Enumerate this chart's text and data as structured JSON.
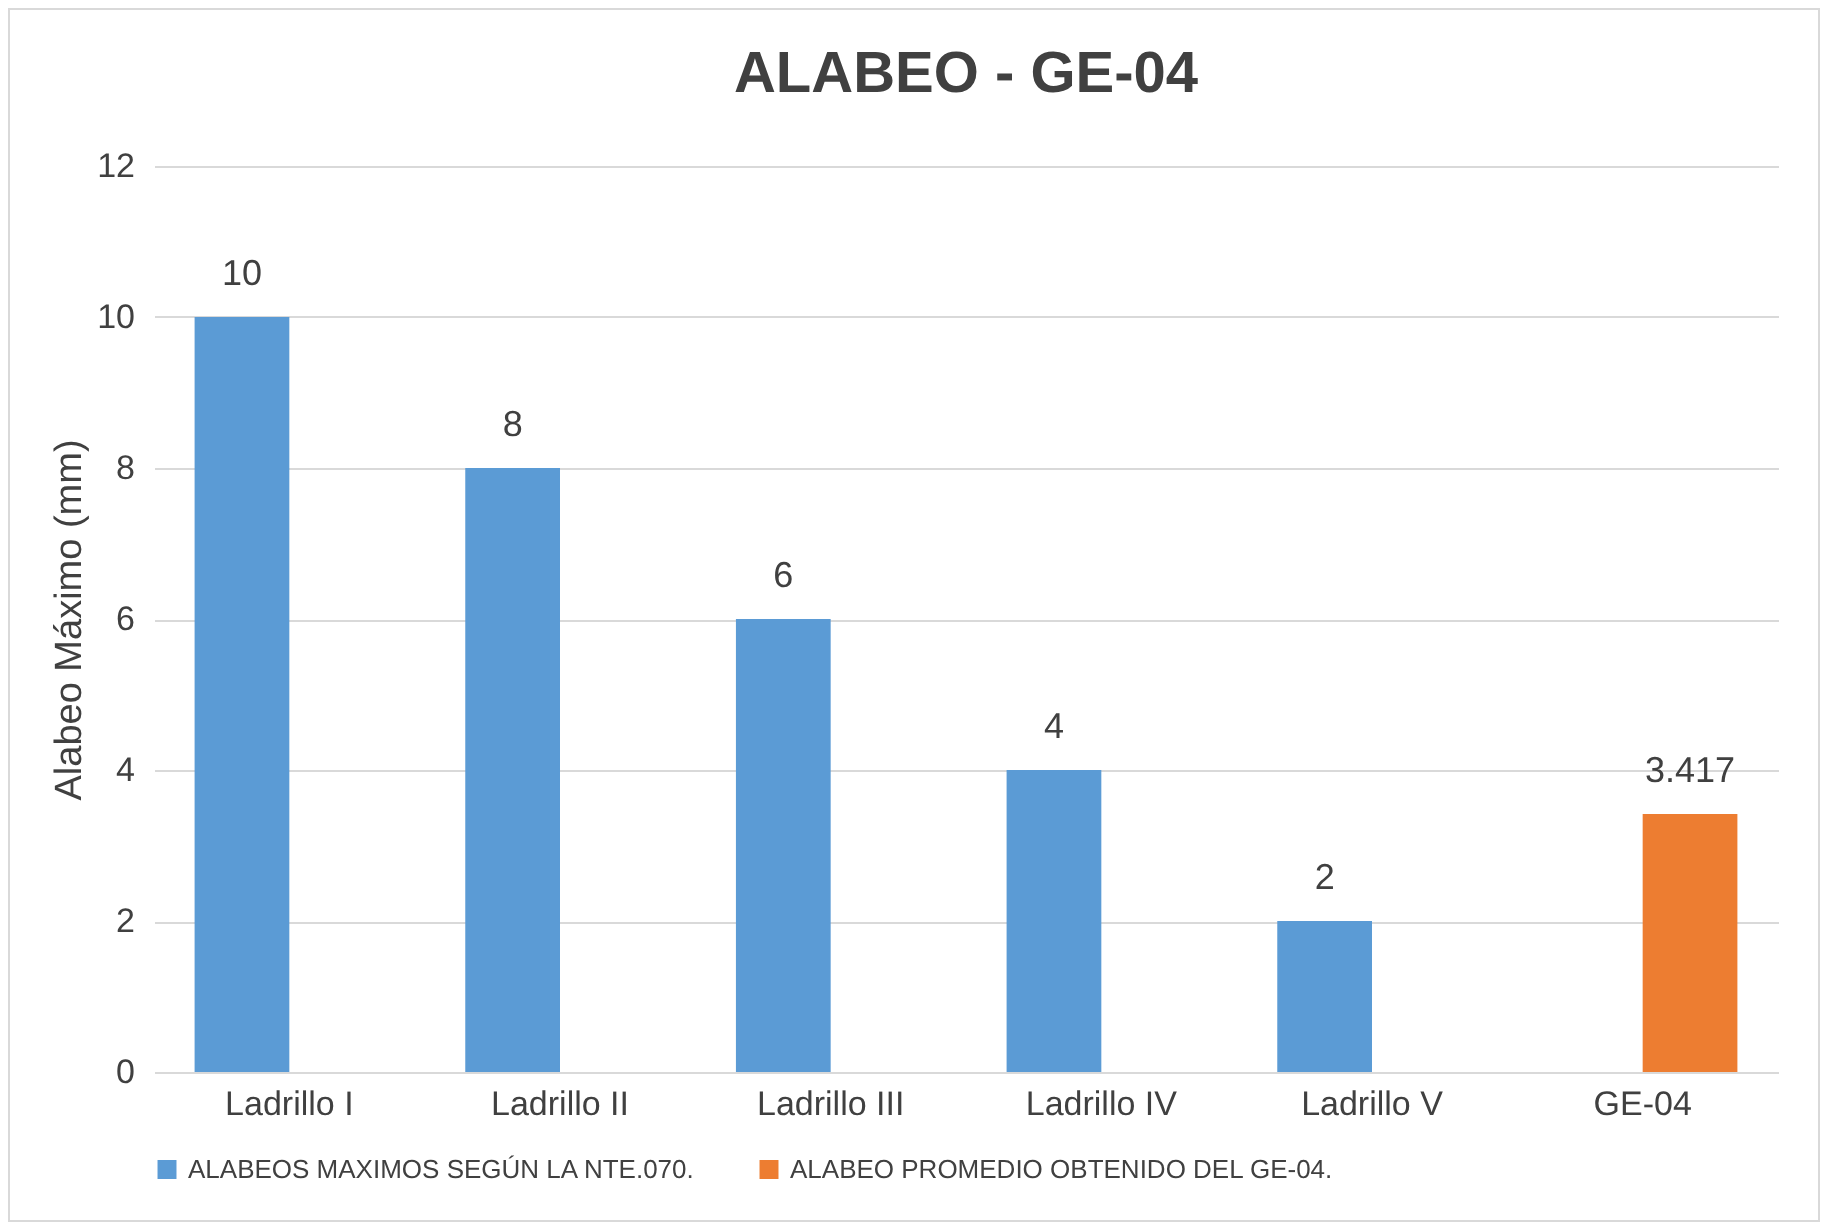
{
  "chart_data": {
    "type": "bar",
    "title": "ALABEO - GE-04",
    "ylabel": "Alabeo Máximo (mm)",
    "categories": [
      "Ladrillo I",
      "Ladrillo II",
      "Ladrillo III",
      "Ladrillo IV",
      "Ladrillo V",
      "GE-04"
    ],
    "series": [
      {
        "name": "ALABEOS MAXIMOS SEGÚN LA NTE.070.",
        "color": "#5b9bd5",
        "values": [
          10,
          8,
          6,
          4,
          2,
          null
        ]
      },
      {
        "name": "ALABEO PROMEDIO OBTENIDO DEL GE-04.",
        "color": "#ed7d31",
        "values": [
          null,
          null,
          null,
          null,
          null,
          3.417
        ]
      }
    ],
    "ylim": [
      0,
      12
    ],
    "yticks": [
      0,
      2,
      4,
      6,
      8,
      10,
      12
    ],
    "grid": "y",
    "legend": "bottom",
    "data_labels": true
  }
}
